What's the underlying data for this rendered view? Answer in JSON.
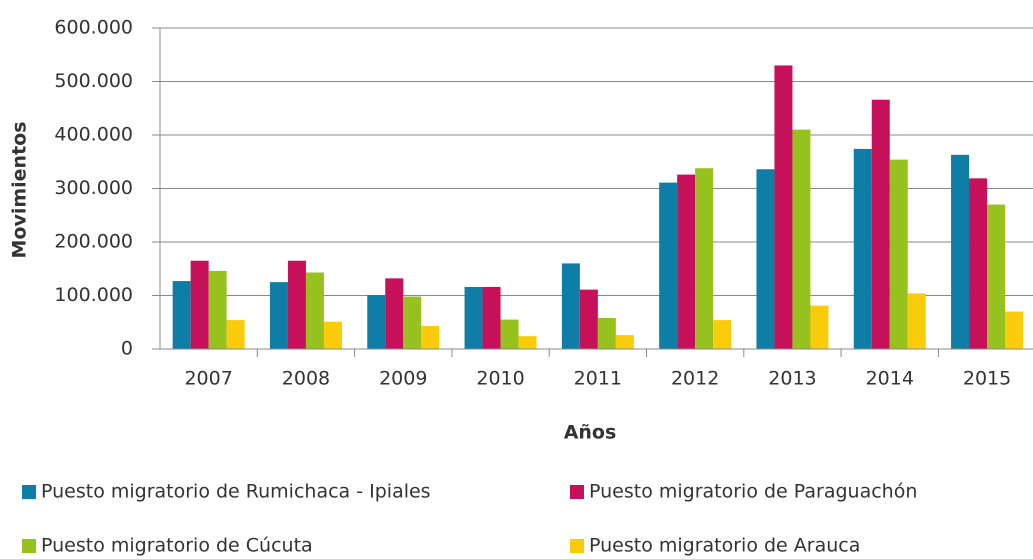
{
  "chart_data": {
    "type": "bar",
    "x_label": "Años",
    "y_label": "Movimientos",
    "categories": [
      "2007",
      "2008",
      "2009",
      "2010",
      "2011",
      "2012",
      "2013",
      "2014",
      "2015"
    ],
    "series": [
      {
        "name": "Puesto migratorio de Rumichaca - Ipiales",
        "color": "#0e7ea6",
        "values": [
          127000,
          125000,
          101000,
          116000,
          160000,
          311000,
          336000,
          374000,
          363000
        ]
      },
      {
        "name": "Puesto migratorio de Paraguachón",
        "color": "#c7105a",
        "values": [
          165000,
          165000,
          132000,
          116000,
          111000,
          326000,
          530000,
          466000,
          319000
        ]
      },
      {
        "name": "Puesto migratorio de Cúcuta",
        "color": "#97c11f",
        "values": [
          146000,
          143000,
          98000,
          55000,
          58000,
          338000,
          410000,
          354000,
          270000
        ]
      },
      {
        "name": "Puesto migratorio de Arauca",
        "color": "#f9cb0a",
        "values": [
          54000,
          51000,
          43000,
          24000,
          26000,
          54000,
          81000,
          104000,
          70000
        ]
      }
    ],
    "ylim": [
      0,
      600000
    ],
    "yticks": [
      0,
      {
        "value": 100000,
        "label": "100.000"
      },
      {
        "value": 200000,
        "label": "200.000"
      },
      {
        "value": 300000,
        "label": "300.000"
      },
      {
        "value": 400000,
        "label": "400.000"
      },
      {
        "value": 500000,
        "label": "500.000"
      },
      {
        "value": 600000,
        "label": "600.000"
      }
    ],
    "grid": true
  }
}
